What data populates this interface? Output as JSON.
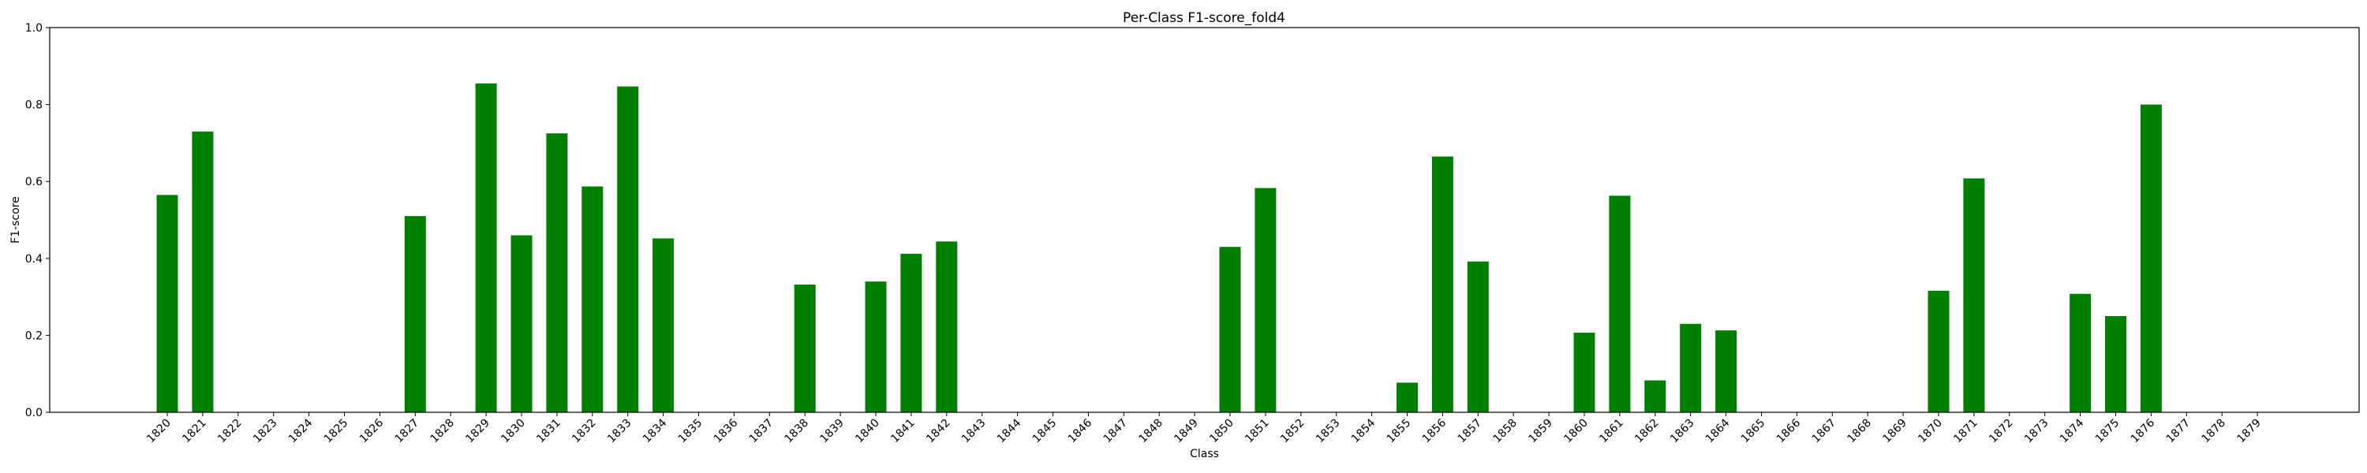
{
  "chart_data": {
    "type": "bar",
    "title": "Per-Class F1-score_fold4",
    "xlabel": "Class",
    "ylabel": "F1-score",
    "ylim": [
      0,
      1.0
    ],
    "yticks": [
      "0.0",
      "0.2",
      "0.4",
      "0.6",
      "0.8",
      "1.0"
    ],
    "grid": false,
    "bar_color": "#008000",
    "categories": [
      "1820",
      "1821",
      "1822",
      "1823",
      "1824",
      "1825",
      "1826",
      "1827",
      "1828",
      "1829",
      "1830",
      "1831",
      "1832",
      "1833",
      "1834",
      "1835",
      "1836",
      "1837",
      "1838",
      "1839",
      "1840",
      "1841",
      "1842",
      "1843",
      "1844",
      "1845",
      "1846",
      "1847",
      "1848",
      "1849",
      "1850",
      "1851",
      "1852",
      "1853",
      "1854",
      "1855",
      "1856",
      "1857",
      "1858",
      "1859",
      "1860",
      "1861",
      "1862",
      "1863",
      "1864",
      "1865",
      "1866",
      "1867",
      "1868",
      "1869",
      "1870",
      "1871",
      "1872",
      "1873",
      "1874",
      "1875",
      "1876",
      "1877",
      "1878",
      "1879"
    ],
    "values": [
      0.565,
      0.73,
      0,
      0,
      0,
      0,
      0,
      0.51,
      0,
      0.855,
      0.46,
      0.725,
      0.587,
      0.847,
      0.452,
      0,
      0,
      0,
      0.332,
      0,
      0.34,
      0.412,
      0.444,
      0,
      0,
      0,
      0,
      0,
      0,
      0,
      0.43,
      0.583,
      0,
      0,
      0,
      0.077,
      0.665,
      0.392,
      0,
      0,
      0.207,
      0.563,
      0.083,
      0.23,
      0.213,
      0,
      0,
      0,
      0,
      0,
      0.316,
      0.608,
      0,
      0,
      0.308,
      0.25,
      0.8,
      0,
      0,
      0
    ]
  }
}
